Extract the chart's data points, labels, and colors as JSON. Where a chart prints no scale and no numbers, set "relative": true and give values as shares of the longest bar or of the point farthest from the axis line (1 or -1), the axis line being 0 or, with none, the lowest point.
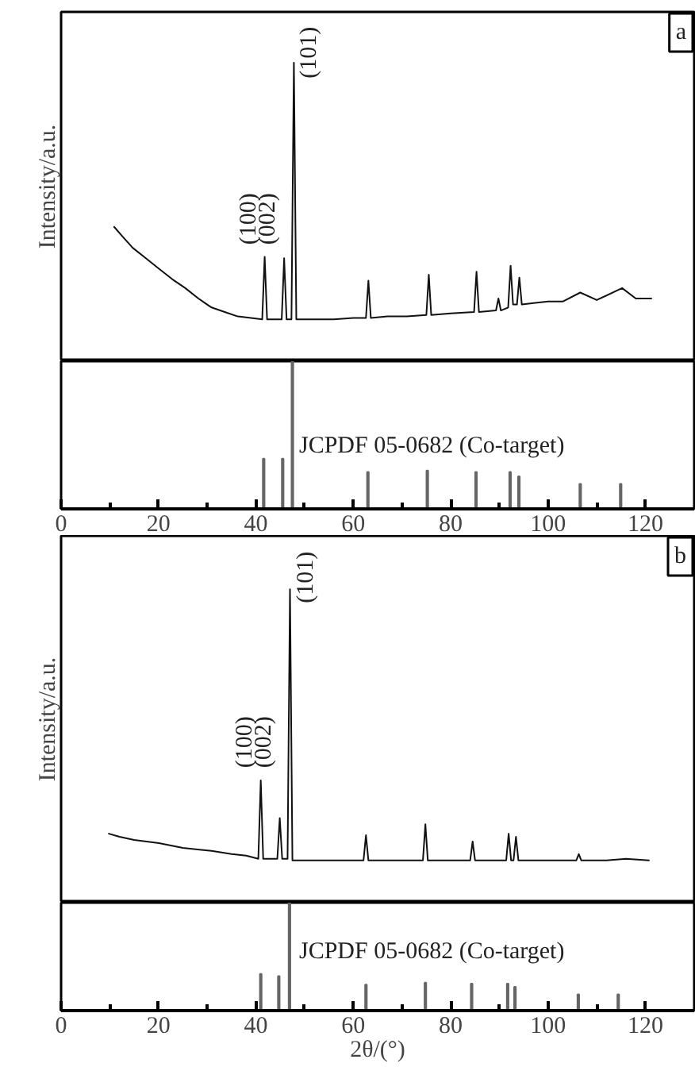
{
  "chart_data": [
    {
      "type": "line",
      "relative": true,
      "xlim": [
        0,
        130
      ],
      "tick_labels": false,
      "ylabel": "Intensity/a.u.",
      "series": [
        {
          "color": "#111111",
          "x": [
            10.9,
            12.5,
            14.7,
            17.4,
            20.1,
            22.8,
            25.5,
            28.2,
            30.9,
            33.6,
            36.3,
            39,
            41.3,
            41.8,
            42.3,
            45.3,
            45.8,
            46.3,
            47.3,
            47.8,
            48.3,
            52,
            56,
            60,
            62.6,
            63.1,
            63.6,
            67,
            71,
            75,
            75.5,
            76,
            80,
            84.8,
            85.3,
            85.8,
            89.3,
            89.8,
            90.3,
            91.8,
            92.3,
            92.8,
            93.6,
            94.1,
            94.6,
            97,
            100,
            103,
            106.6,
            110,
            115.2,
            118,
            121.2
          ],
          "values": [
            0.45,
            0.42,
            0.38,
            0.345,
            0.31,
            0.275,
            0.245,
            0.21,
            0.18,
            0.165,
            0.15,
            0.145,
            0.14,
            0.35,
            0.14,
            0.14,
            0.345,
            0.14,
            0.14,
            1.0,
            0.14,
            0.14,
            0.14,
            0.145,
            0.145,
            0.27,
            0.145,
            0.15,
            0.15,
            0.155,
            0.29,
            0.155,
            0.16,
            0.165,
            0.3,
            0.165,
            0.17,
            0.21,
            0.17,
            0.18,
            0.32,
            0.19,
            0.19,
            0.28,
            0.19,
            0.195,
            0.2,
            0.2,
            0.23,
            0.205,
            0.245,
            0.21,
            0.21
          ]
        }
      ],
      "annotations": [
        {
          "text": "(100)",
          "x": 41.8,
          "y": 0.35
        },
        {
          "text": "(002)",
          "x": 45.8,
          "y": 0.345
        },
        {
          "text": "(101)",
          "x": 47.8,
          "y": 1.0
        },
        "a"
      ]
    },
    {
      "type": "bar",
      "relative": true,
      "xlim": [
        0,
        130
      ],
      "tick_labels": "x",
      "xticks": [
        0,
        {
          "value": 10,
          "label": null
        },
        20,
        {
          "value": 30,
          "label": null
        },
        40,
        {
          "value": 50,
          "label": null
        },
        60,
        {
          "value": 70,
          "label": null
        },
        80,
        {
          "value": 90,
          "label": null
        },
        100,
        {
          "value": 110,
          "label": null
        },
        120
      ],
      "x": [
        41.6,
        45.5,
        47.5,
        63.0,
        75.2,
        85.2,
        92.2,
        94.0,
        106.6,
        114.9
      ],
      "values": [
        0.34,
        0.34,
        1.0,
        0.25,
        0.26,
        0.25,
        0.25,
        0.22,
        0.17,
        0.17
      ],
      "color": "#666666",
      "annotations": [
        "JCPDF 05-0682 (Co-target)"
      ]
    },
    {
      "type": "line",
      "relative": true,
      "xlim": [
        0,
        130
      ],
      "tick_labels": false,
      "ylabel": "Intensity/a.u.",
      "series": [
        {
          "color": "#111111",
          "x": [
            9.8,
            12,
            15,
            20.1,
            25,
            30.9,
            35,
            38,
            40.5,
            41.0,
            41.5,
            44.4,
            44.9,
            45.4,
            46.5,
            47.0,
            47.5,
            52,
            57,
            62.1,
            62.6,
            63.1,
            68,
            74.3,
            74.8,
            75.3,
            80,
            84,
            84.5,
            85,
            88,
            91.4,
            91.9,
            92.4,
            92.9,
            93.4,
            93.9,
            100,
            105.8,
            106.3,
            106.8,
            112,
            116,
            120.7
          ],
          "values": [
            0.22,
            0.21,
            0.2,
            0.19,
            0.175,
            0.165,
            0.155,
            0.15,
            0.14,
            0.39,
            0.14,
            0.14,
            0.27,
            0.14,
            0.14,
            1.0,
            0.135,
            0.135,
            0.135,
            0.135,
            0.215,
            0.135,
            0.135,
            0.135,
            0.25,
            0.135,
            0.135,
            0.135,
            0.195,
            0.135,
            0.135,
            0.135,
            0.22,
            0.135,
            0.135,
            0.21,
            0.135,
            0.135,
            0.135,
            0.155,
            0.135,
            0.135,
            0.14,
            0.135
          ]
        }
      ],
      "annotations": [
        {
          "text": "(100)",
          "x": 41.0,
          "y": 0.39
        },
        {
          "text": "(002)",
          "x": 44.9,
          "y": 0.27
        },
        {
          "text": "(101)",
          "x": 47.0,
          "y": 1.0
        },
        "b"
      ]
    },
    {
      "type": "bar",
      "relative": true,
      "xlim": [
        0,
        130
      ],
      "tick_labels": "x",
      "xlabel": "2θ/(°)",
      "xticks": [
        0,
        {
          "value": 10,
          "label": null
        },
        20,
        {
          "value": 30,
          "label": null
        },
        40,
        {
          "value": 50,
          "label": null
        },
        60,
        {
          "value": 70,
          "label": null
        },
        80,
        {
          "value": 90,
          "label": null
        },
        100,
        {
          "value": 110,
          "label": null
        },
        120
      ],
      "x": [
        41.0,
        44.7,
        46.9,
        62.6,
        74.8,
        84.3,
        91.7,
        93.2,
        106.2,
        114.4
      ],
      "values": [
        0.34,
        0.32,
        1.0,
        0.24,
        0.26,
        0.25,
        0.25,
        0.22,
        0.15,
        0.15
      ],
      "color": "#666666",
      "annotations": [
        "JCPDF 05-0682 (Co-target)"
      ]
    }
  ]
}
